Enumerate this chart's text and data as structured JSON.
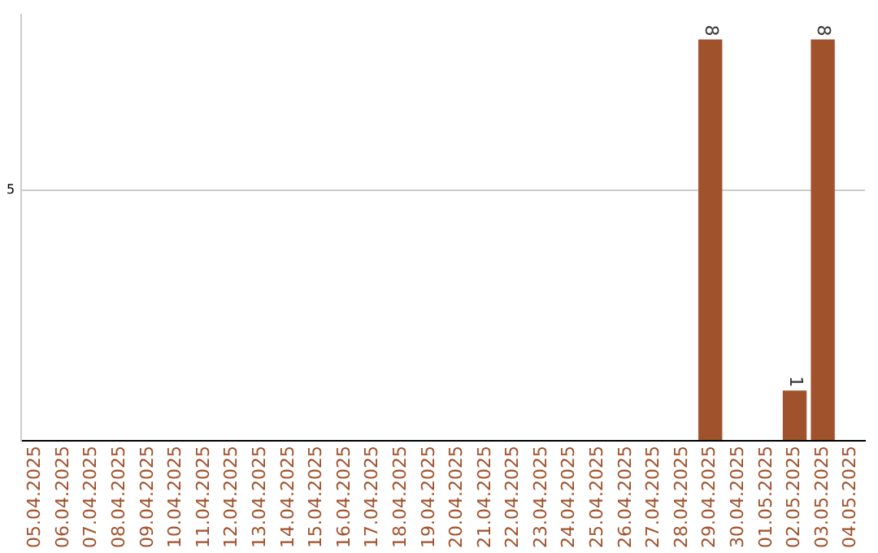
{
  "chart_data": {
    "type": "bar",
    "categories": [
      "05.04.2025",
      "06.04.2025",
      "07.04.2025",
      "08.04.2025",
      "09.04.2025",
      "10.04.2025",
      "11.04.2025",
      "12.04.2025",
      "13.04.2025",
      "14.04.2025",
      "15.04.2025",
      "16.04.2025",
      "17.04.2025",
      "18.04.2025",
      "19.04.2025",
      "20.04.2025",
      "21.04.2025",
      "22.04.2025",
      "23.04.2025",
      "24.04.2025",
      "25.04.2025",
      "26.04.2025",
      "27.04.2025",
      "28.04.2025",
      "29.04.2025",
      "30.04.2025",
      "01.05.2025",
      "02.05.2025",
      "03.05.2025",
      "04.05.2025"
    ],
    "values": [
      null,
      null,
      null,
      null,
      null,
      null,
      null,
      null,
      null,
      null,
      null,
      null,
      null,
      null,
      null,
      null,
      null,
      null,
      null,
      null,
      null,
      null,
      null,
      null,
      8,
      null,
      null,
      1,
      8,
      null
    ],
    "color": "#a0522d",
    "ylim": [
      0,
      8.5
    ],
    "yticks": [
      {
        "value": 0,
        "label": null
      },
      5
    ],
    "grid": "y",
    "data_labels": true,
    "legend": false
  }
}
